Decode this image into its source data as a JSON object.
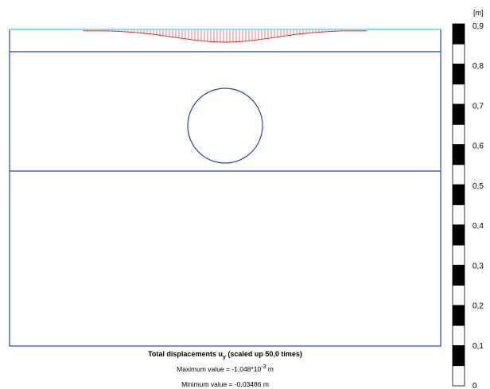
{
  "caption": {
    "title_prefix": "Total displacements u",
    "title_sub": "y",
    "title_suffix": " (scaled up 50,0 times)",
    "max_prefix": "Maximum value = -1,048*10",
    "max_exp": "-3",
    "max_suffix": " m",
    "min_text": "Minimum value = -0,03486 m"
  },
  "scale": {
    "unit": "[m]",
    "labels": [
      "0,9",
      "0,8",
      "0,7",
      "0,6",
      "0,5",
      "0,4",
      "0,3",
      "0,2",
      "0,1",
      "0"
    ]
  },
  "colors": {
    "mesh": "#2a3fc8",
    "surface": "#7fe3ef",
    "arrows": "#e02020"
  }
}
